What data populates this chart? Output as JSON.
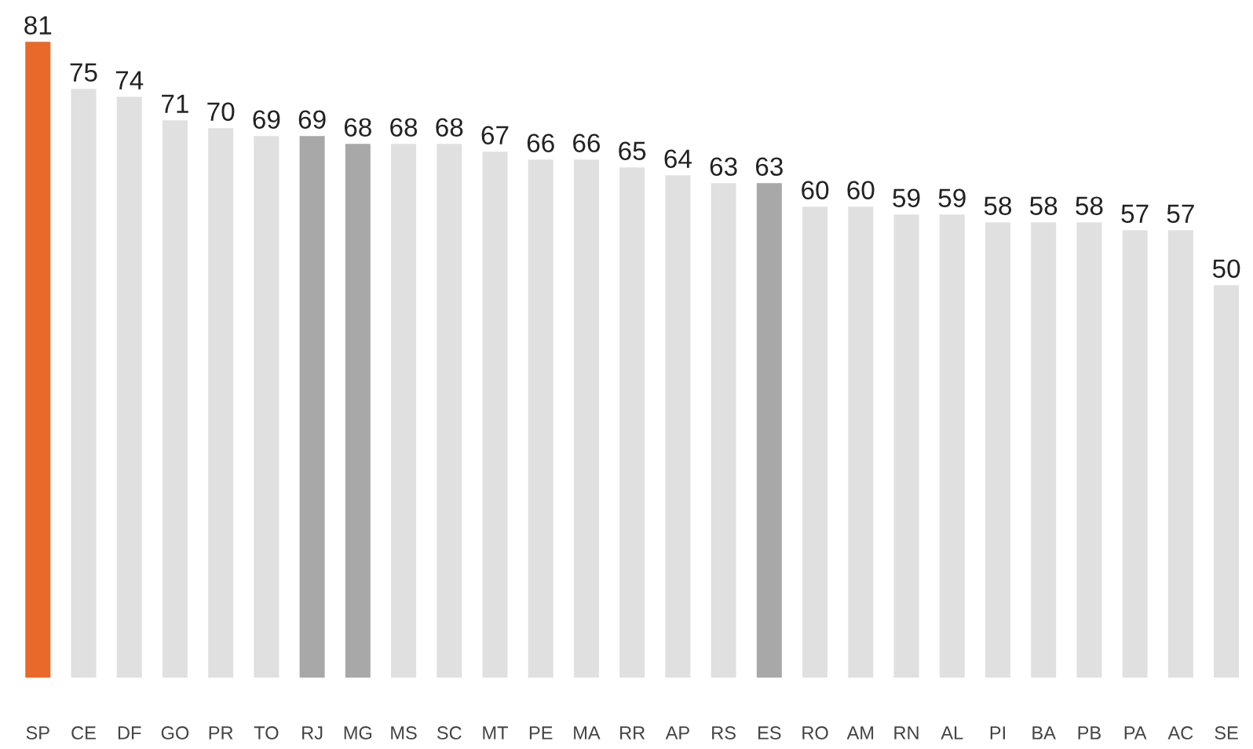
{
  "chart_data": {
    "type": "bar",
    "categories": [
      "SP",
      "CE",
      "DF",
      "GO",
      "PR",
      "TO",
      "RJ",
      "MG",
      "MS",
      "SC",
      "MT",
      "PE",
      "MA",
      "RR",
      "AP",
      "RS",
      "ES",
      "RO",
      "AM",
      "RN",
      "AL",
      "PI",
      "BA",
      "PB",
      "PA",
      "AC",
      "SE"
    ],
    "values": [
      81,
      75,
      74,
      71,
      70,
      69,
      69,
      68,
      68,
      68,
      67,
      66,
      66,
      65,
      64,
      63,
      63,
      60,
      60,
      59,
      59,
      58,
      58,
      58,
      57,
      57,
      50
    ],
    "colors": [
      "#e8692a",
      "#e0e0e0",
      "#e0e0e0",
      "#e0e0e0",
      "#e0e0e0",
      "#e0e0e0",
      "#a8a8a8",
      "#a8a8a8",
      "#e0e0e0",
      "#e0e0e0",
      "#e0e0e0",
      "#e0e0e0",
      "#e0e0e0",
      "#e0e0e0",
      "#e0e0e0",
      "#e0e0e0",
      "#a8a8a8",
      "#e0e0e0",
      "#e0e0e0",
      "#e0e0e0",
      "#e0e0e0",
      "#e0e0e0",
      "#e0e0e0",
      "#e0e0e0",
      "#e0e0e0",
      "#e0e0e0",
      "#e0e0e0"
    ],
    "data_labels": true,
    "grid": false,
    "legend": false
  }
}
